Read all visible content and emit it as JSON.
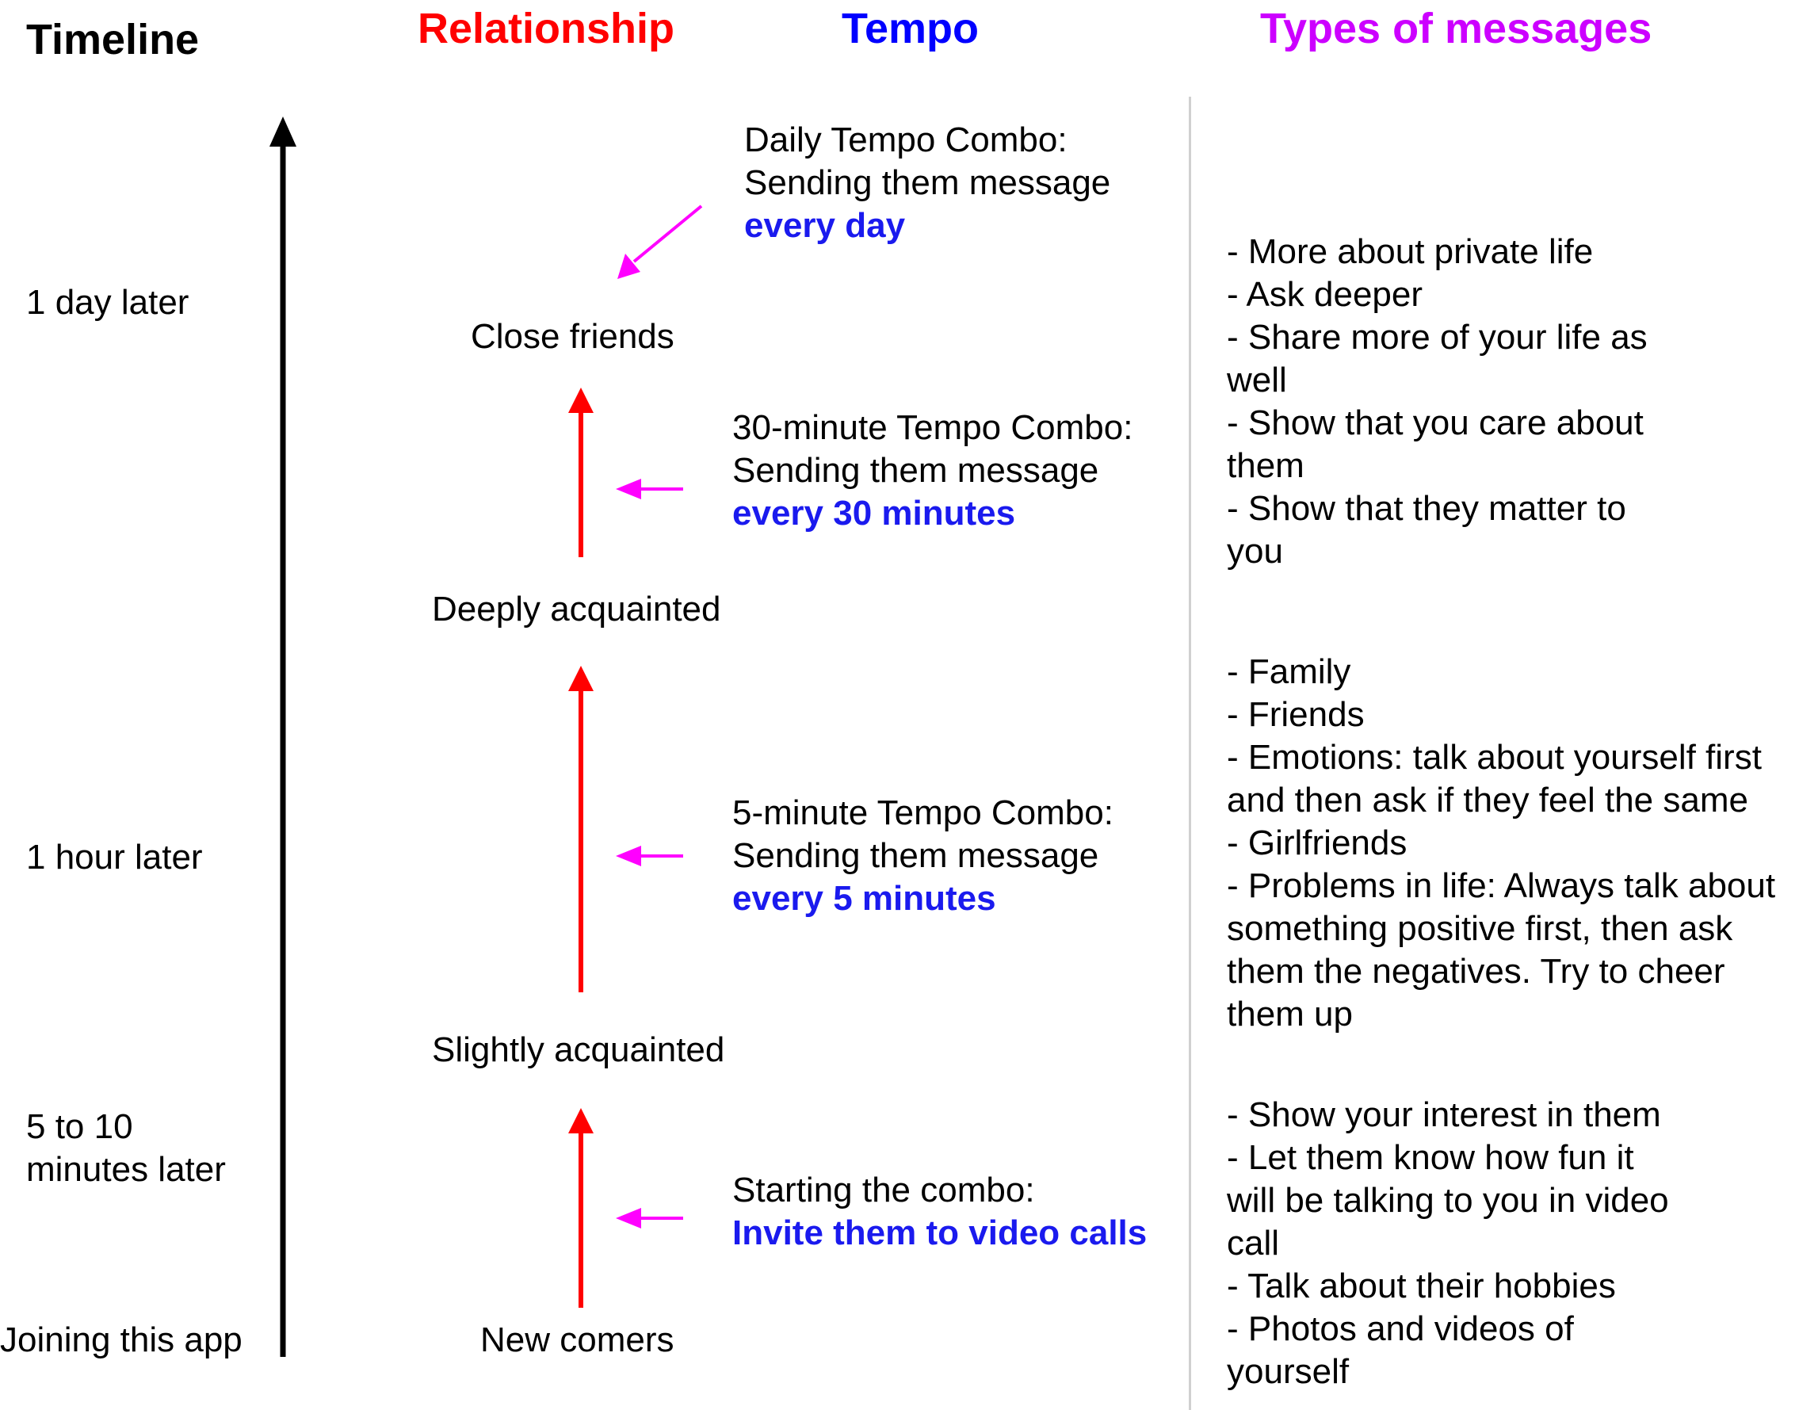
{
  "headers": {
    "timeline": "Timeline",
    "relationship": "Relationship",
    "tempo": "Tempo",
    "types": "Types of messages"
  },
  "colors": {
    "timeline": "#000000",
    "relationship": "#ff0000",
    "tempo": "#0000ff",
    "types": "#cc00ff",
    "arrow_red": "#ff0000",
    "arrow_magenta": "#ff00ff",
    "highlight_blue": "#1a1aee",
    "divider": "#d0d0d0"
  },
  "timeline": {
    "day": "1 day later",
    "hour": "1 hour later",
    "minutes_line1": "5 to 10",
    "minutes_line2": "minutes later",
    "join": "Joining this app"
  },
  "relationship": {
    "close": "Close friends",
    "deep": "Deeply acquainted",
    "slight": "Slightly acquainted",
    "new": "New comers"
  },
  "tempo": {
    "daily": {
      "line1": "Daily Tempo Combo:",
      "line2": "Sending them message",
      "highlight": "every day"
    },
    "thirty": {
      "line1": "30-minute Tempo Combo:",
      "line2": "Sending them message",
      "highlight": "every 30 minutes"
    },
    "five": {
      "line1": "5-minute Tempo Combo:",
      "line2": "Sending them message",
      "highlight": "every 5 minutes"
    },
    "start": {
      "line1": "Starting the combo:",
      "highlight": "Invite them to video calls"
    }
  },
  "messages": {
    "close": [
      "- More about private life",
      "- Ask deeper",
      "- Share more of your life as",
      "well",
      "- Show that you care about",
      "them",
      "- Show that they matter to",
      "you"
    ],
    "deep": [
      "- Family",
      "- Friends",
      "- Emotions: talk about yourself first",
      "and then ask if they feel the same",
      "- Girlfriends",
      "- Problems in life: Always talk about",
      "something positive first, then ask",
      "them the negatives. Try to cheer",
      "them up"
    ],
    "slight": [
      "- Show your interest in them",
      "- Let them know how fun it",
      "will be talking to you in video",
      "call",
      "- Talk about their hobbies",
      "- Photos and videos of",
      "yourself"
    ]
  }
}
